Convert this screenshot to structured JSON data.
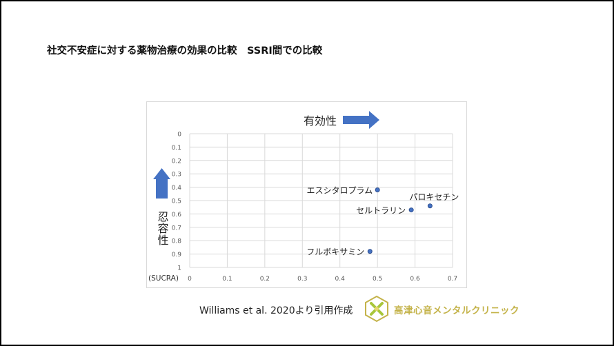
{
  "slide": {
    "title": "社交不安症に対する薬物治療の効果の比較　SSRI間での比較",
    "citation": "Williams et al. 2020より引用作成",
    "logo_text": "高津心音メンタルクリニック",
    "logo_color": "#c4b34a"
  },
  "chart_data": {
    "type": "scatter",
    "x_annotation": "有効性",
    "y_annotation": "忍容性",
    "y_unit_label": "(SUCRA)",
    "xlim": [
      0,
      0.7
    ],
    "ylim": [
      0,
      1
    ],
    "y_inverted": true,
    "grid": true,
    "x_ticks": [
      "0",
      "0.1",
      "0.2",
      "0.3",
      "0.4",
      "0.5",
      "0.6",
      "0.7"
    ],
    "y_ticks": [
      "0",
      "0.1",
      "0.2",
      "0.3",
      "0.4",
      "0.5",
      "0.6",
      "0.7",
      "0.8",
      "0.9",
      "1"
    ],
    "points": [
      {
        "label": "エスシタロプラム",
        "x": 0.5,
        "y": 0.42
      },
      {
        "label": "パロキセチン",
        "x": 0.64,
        "y": 0.54
      },
      {
        "label": "セルトラリン",
        "x": 0.59,
        "y": 0.57
      },
      {
        "label": "フルボキサミン",
        "x": 0.48,
        "y": 0.88
      }
    ],
    "marker_color": "#4472c4",
    "arrow_color": "#4472c4"
  }
}
